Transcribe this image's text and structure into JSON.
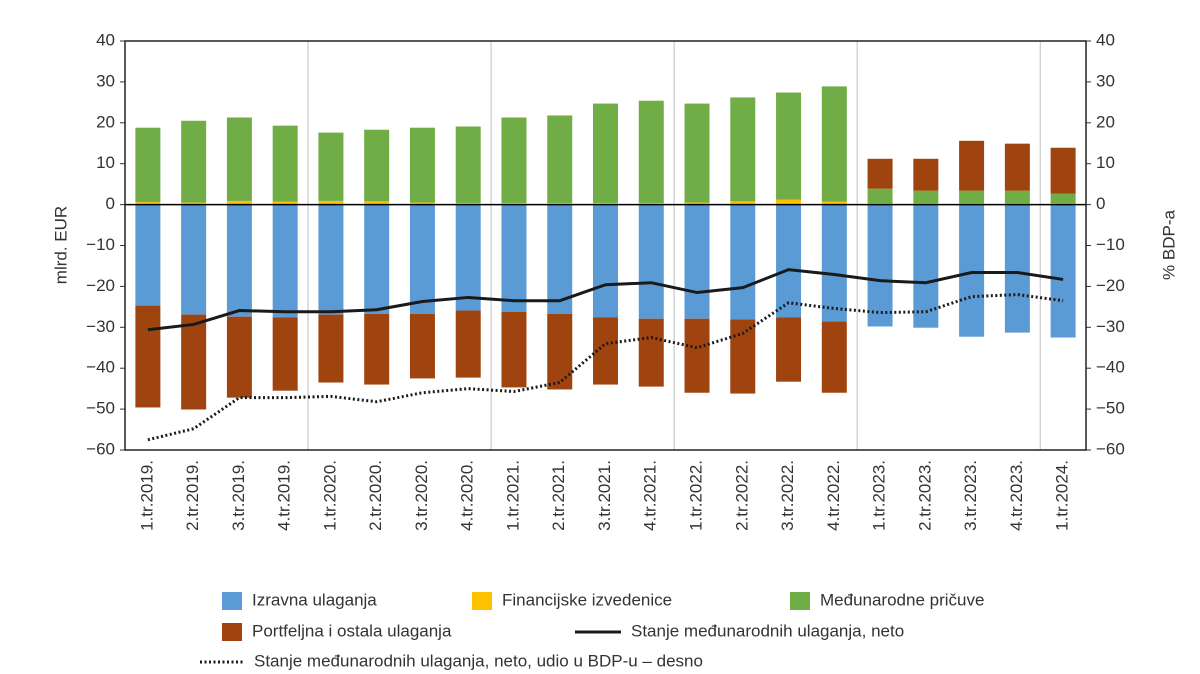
{
  "chart_data": {
    "type": "bar",
    "categories": [
      "1.tr.2019.",
      "2.tr.2019.",
      "3.tr.2019.",
      "4.tr.2019.",
      "1.tr.2020.",
      "2.tr.2020.",
      "3.tr.2020.",
      "4.tr.2020.",
      "1.tr.2021.",
      "2.tr.2021.",
      "3.tr.2021.",
      "4.tr.2021.",
      "1.tr.2022.",
      "2.tr.2022.",
      "3.tr.2022.",
      "4.tr.2022.",
      "1.tr.2023.",
      "2.tr.2023.",
      "3.tr.2023.",
      "4.tr.2023.",
      "1.tr.2024."
    ],
    "series": [
      {
        "name": "Izravna ulaganja",
        "type": "bar",
        "color": "#5b9bd5",
        "values": [
          -24.7,
          -26.9,
          -27.4,
          -27.6,
          -26.9,
          -26.7,
          -26.7,
          -25.9,
          -26.2,
          -26.7,
          -27.6,
          -27.9,
          -27.9,
          -28.1,
          -27.6,
          -28.6,
          -29.8,
          -30.1,
          -32.3,
          -31.3,
          -32.5
        ]
      },
      {
        "name": "Financijske izvedenice",
        "type": "bar",
        "color": "#ffc000",
        "values": [
          0.6,
          0.5,
          0.9,
          0.7,
          0.9,
          0.8,
          0.5,
          0.4,
          0.4,
          0.4,
          0.4,
          0.4,
          0.5,
          0.8,
          1.2,
          0.7,
          0.2,
          0.2,
          0.2,
          0.2,
          0.2
        ]
      },
      {
        "name": "Međunarodne pričuve",
        "type": "bar",
        "color": "#70ad47",
        "values": [
          18.2,
          20.0,
          20.4,
          18.6,
          16.7,
          17.5,
          18.3,
          18.7,
          20.9,
          21.4,
          24.3,
          25.0,
          24.2,
          25.4,
          26.2,
          28.2,
          3.7,
          3.2,
          3.2,
          3.2,
          2.5
        ]
      },
      {
        "name": "Portfeljna i ostala ulaganja",
        "type": "bar",
        "color": "#a0440f",
        "values": [
          -24.9,
          -23.2,
          -19.8,
          -17.9,
          -16.6,
          -17.3,
          -15.8,
          -16.4,
          -18.5,
          -18.5,
          -16.4,
          -16.6,
          -18.1,
          -18.1,
          -15.7,
          -17.4,
          7.3,
          7.8,
          12.2,
          11.5,
          11.2
        ]
      },
      {
        "name": "Stanje međunarodnih ulaganja, neto",
        "type": "line",
        "color": "#1a1a1a",
        "dash": "solid",
        "values": [
          -30.6,
          -29.3,
          -25.9,
          -26.2,
          -26.2,
          -25.7,
          -23.7,
          -22.7,
          -23.5,
          -23.5,
          -19.6,
          -19.1,
          -21.5,
          -20.3,
          -15.9,
          -17.1,
          -18.6,
          -19.1,
          -16.6,
          -16.6,
          -18.3
        ]
      },
      {
        "name": "Stanje međunarodnih ulaganja, neto, udio u BDP-u – desno",
        "type": "line",
        "axis": "y2",
        "color": "#1a1a1a",
        "dash": "dotted",
        "values": [
          -57.5,
          -54.8,
          -47.2,
          -47.2,
          -46.9,
          -48.2,
          -46.0,
          -45.0,
          -45.7,
          -43.5,
          -34.0,
          -32.5,
          -35.0,
          -31.5,
          -24.0,
          -25.4,
          -26.4,
          -26.2,
          -22.5,
          -22.0,
          -23.5
        ]
      }
    ],
    "y_label": "mlrd. EUR",
    "y2_label": "% BDP-a",
    "ylim": [
      -60,
      40
    ],
    "yticks": [
      {
        "value": -60,
        "label": "−60"
      },
      {
        "value": -50,
        "label": "−50"
      },
      {
        "value": -40,
        "label": "−40"
      },
      {
        "value": -30,
        "label": "−30"
      },
      {
        "value": -20,
        "label": "−20"
      },
      {
        "value": -10,
        "label": "−10"
      },
      0,
      10,
      20,
      30,
      40
    ],
    "y2lim": [
      -60,
      40
    ],
    "y2ticks": [
      {
        "value": -60,
        "label": "−60"
      },
      {
        "value": -50,
        "label": "−50"
      },
      {
        "value": -40,
        "label": "−40"
      },
      {
        "value": -30,
        "label": "−30"
      },
      {
        "value": -20,
        "label": "−20"
      },
      {
        "value": -10,
        "label": "−10"
      },
      0,
      10,
      20,
      30,
      40
    ],
    "grid": "x"
  }
}
